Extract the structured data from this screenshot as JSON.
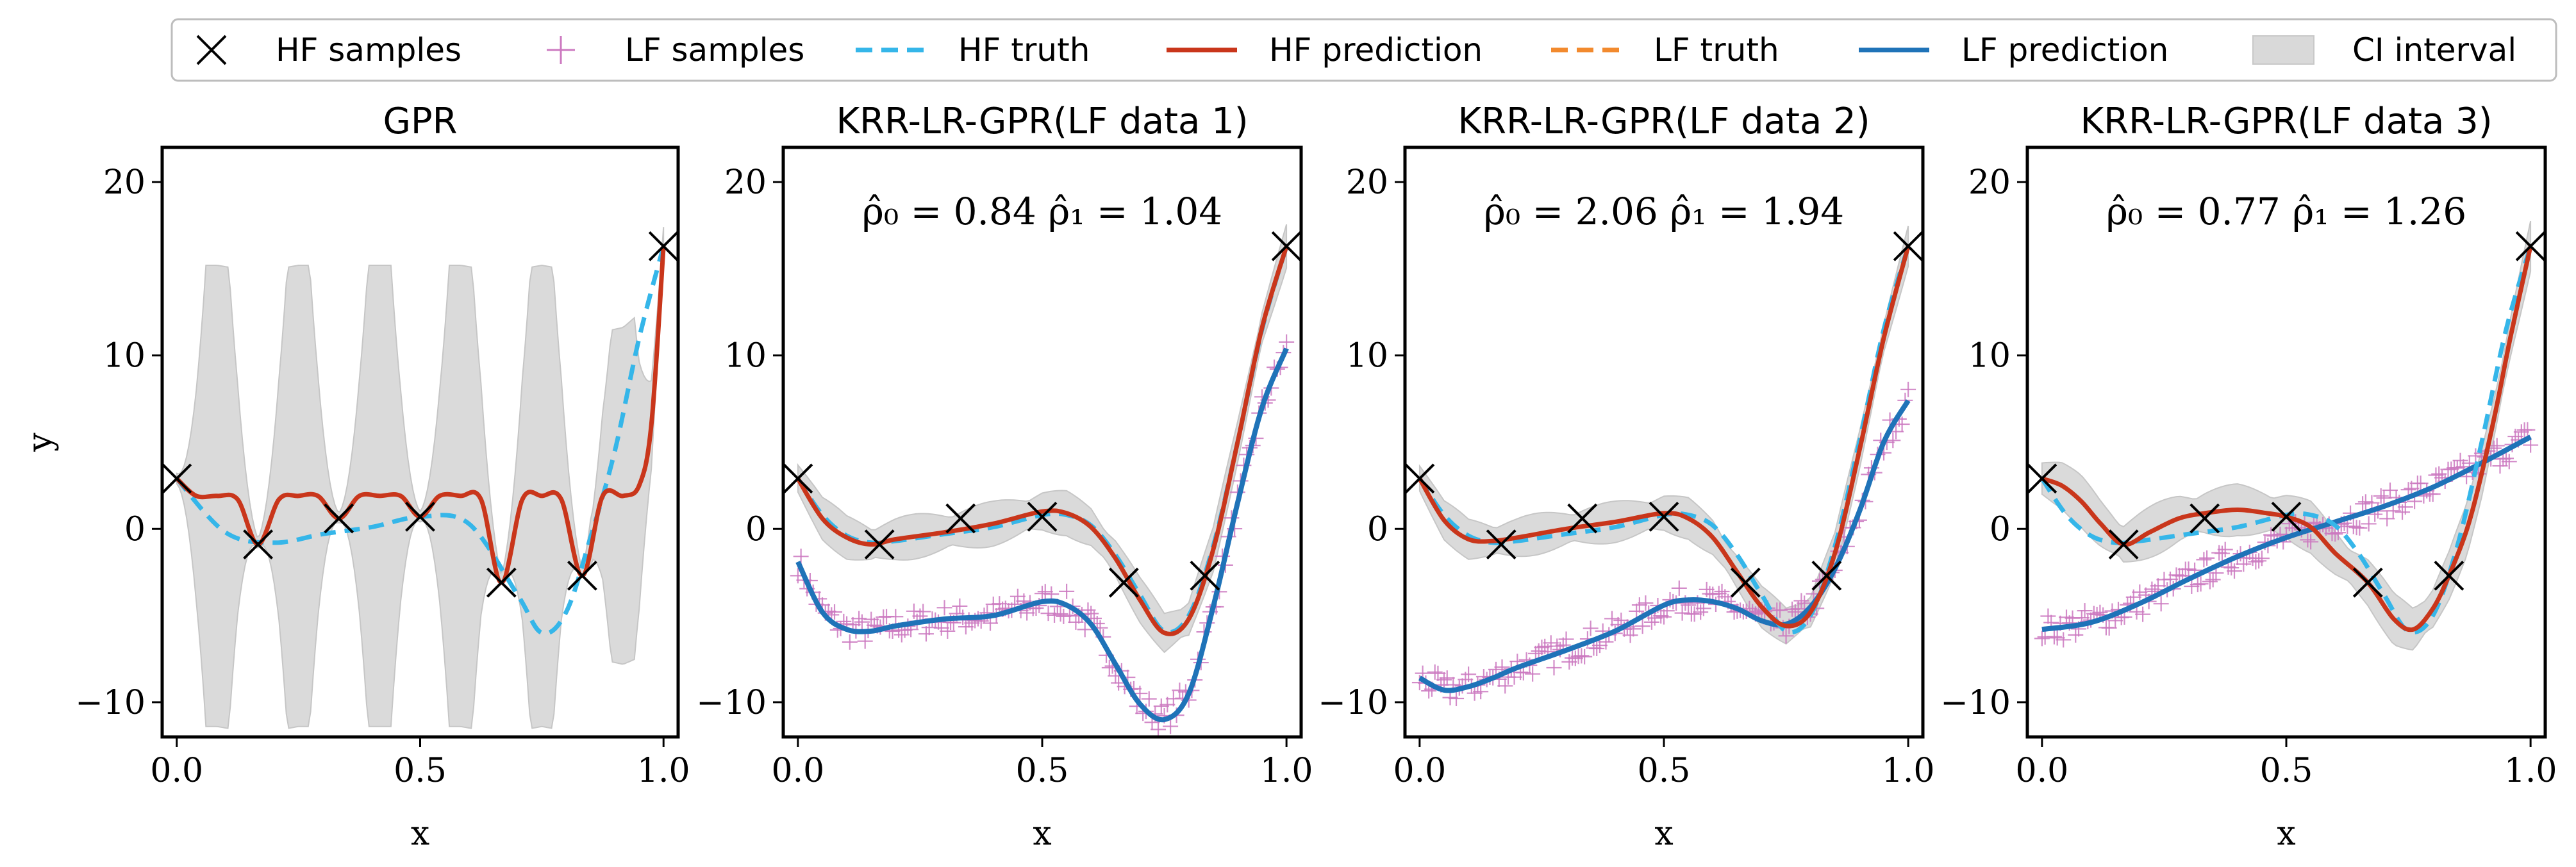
{
  "legend": {
    "items": [
      {
        "key": "hf_samples",
        "label": "HF samples",
        "marker": "x",
        "color": "#000000"
      },
      {
        "key": "lf_samples",
        "label": "LF samples",
        "marker": "+",
        "color": "#cc79c0"
      },
      {
        "key": "hf_truth",
        "label": "HF truth",
        "style": "dashed",
        "color": "#35b6e9"
      },
      {
        "key": "hf_pred",
        "label": "HF prediction",
        "style": "solid",
        "color": "#c9361b"
      },
      {
        "key": "lf_truth",
        "label": "LF truth",
        "style": "dashed",
        "color": "#f28a2e"
      },
      {
        "key": "lf_pred",
        "label": "LF prediction",
        "style": "solid",
        "color": "#1f73b8"
      },
      {
        "key": "ci",
        "label": "CI interval",
        "style": "fill",
        "color": "#d9d9d9"
      }
    ]
  },
  "chart_data": [
    {
      "type": "line",
      "title": "GPR",
      "xlabel": "x",
      "ylabel": "y",
      "xlim": [
        -0.03,
        1.03
      ],
      "ylim": [
        -12,
        22
      ],
      "xticks": [
        "0.0",
        "0.5",
        "1.0"
      ],
      "yticks": [
        "−10",
        "0",
        "10",
        "20"
      ],
      "annotation": "",
      "hf_samples": {
        "x": [
          0.0,
          0.167,
          0.333,
          0.5,
          0.667,
          0.833,
          1.0
        ],
        "y": [
          2.9,
          -0.9,
          0.6,
          0.7,
          -3.1,
          -2.7,
          16.3
        ]
      },
      "hf_truth": {
        "x": [
          0.0,
          0.1,
          0.2,
          0.3,
          0.4,
          0.5,
          0.6,
          0.7,
          0.75,
          0.8,
          0.85,
          0.9,
          0.95,
          1.0
        ],
        "y": [
          2.9,
          -0.2,
          -0.8,
          -0.3,
          0.1,
          0.7,
          0.3,
          -3.8,
          -6.0,
          -4.8,
          -0.5,
          4.5,
          11.0,
          16.3
        ]
      },
      "hf_prediction": {
        "x": [
          0.0,
          0.04,
          0.083,
          0.125,
          0.167,
          0.21,
          0.25,
          0.29,
          0.333,
          0.375,
          0.417,
          0.46,
          0.5,
          0.54,
          0.583,
          0.625,
          0.667,
          0.71,
          0.75,
          0.79,
          0.833,
          0.875,
          0.917,
          0.95,
          0.975,
          1.0
        ],
        "y": [
          2.9,
          1.9,
          1.9,
          1.7,
          -0.9,
          1.7,
          1.9,
          1.9,
          0.6,
          1.9,
          1.9,
          1.9,
          0.7,
          1.9,
          1.9,
          1.7,
          -3.1,
          1.7,
          1.9,
          1.7,
          -2.7,
          1.9,
          1.9,
          2.5,
          6.0,
          16.3
        ]
      },
      "ci_half_width": 13
    },
    {
      "type": "line",
      "title": "KRR-LR-GPR(LF data 1)",
      "xlabel": "x",
      "ylabel": "",
      "xlim": [
        -0.03,
        1.03
      ],
      "ylim": [
        -12,
        22
      ],
      "xticks": [
        "0.0",
        "0.5",
        "1.0"
      ],
      "yticks": [
        "−10",
        "0",
        "10",
        "20"
      ],
      "annotation": "ρ̂₀ = 0.84  ρ̂₁ = 1.04",
      "hf_samples": {
        "x": [
          0.0,
          0.167,
          0.333,
          0.5,
          0.667,
          0.833,
          1.0
        ],
        "y": [
          2.9,
          -0.9,
          0.6,
          0.7,
          -3.1,
          -2.7,
          16.3
        ]
      },
      "hf_truth": {
        "x": [
          0.0,
          0.05,
          0.1,
          0.15,
          0.2,
          0.3,
          0.4,
          0.5,
          0.55,
          0.6,
          0.65,
          0.7,
          0.75,
          0.8,
          0.85,
          0.9,
          0.95,
          1.0
        ],
        "y": [
          2.9,
          0.8,
          -0.4,
          -0.8,
          -0.7,
          -0.3,
          0.1,
          0.8,
          0.8,
          0.2,
          -1.5,
          -3.8,
          -5.9,
          -5.0,
          -1.0,
          5.0,
          11.5,
          16.3
        ]
      },
      "hf_prediction": {
        "x": [
          0.0,
          0.05,
          0.1,
          0.15,
          0.2,
          0.3,
          0.4,
          0.5,
          0.55,
          0.6,
          0.65,
          0.7,
          0.75,
          0.8,
          0.85,
          0.9,
          0.95,
          1.0
        ],
        "y": [
          2.9,
          0.6,
          -0.5,
          -0.9,
          -0.6,
          -0.2,
          0.3,
          1.0,
          0.9,
          0.1,
          -1.7,
          -4.1,
          -6.0,
          -5.2,
          -1.2,
          5.0,
          11.6,
          16.3
        ]
      },
      "lf_prediction": {
        "x": [
          0.0,
          0.05,
          0.1,
          0.15,
          0.2,
          0.3,
          0.4,
          0.5,
          0.55,
          0.6,
          0.65,
          0.7,
          0.75,
          0.8,
          0.85,
          0.9,
          0.95,
          1.0
        ],
        "y": [
          -1.9,
          -4.8,
          -5.8,
          -5.9,
          -5.6,
          -5.2,
          -5.0,
          -4.2,
          -4.4,
          -5.5,
          -7.8,
          -10.1,
          -11.0,
          -9.5,
          -4.5,
          1.5,
          7.0,
          10.4
        ]
      },
      "ci_half_width": 1.3
    },
    {
      "type": "line",
      "title": "KRR-LR-GPR(LF data 2)",
      "xlabel": "x",
      "ylabel": "",
      "xlim": [
        -0.03,
        1.03
      ],
      "ylim": [
        -12,
        22
      ],
      "xticks": [
        "0.0",
        "0.5",
        "1.0"
      ],
      "yticks": [
        "−10",
        "0",
        "10",
        "20"
      ],
      "annotation": "ρ̂₀ = 2.06  ρ̂₁ = 1.94",
      "hf_samples": {
        "x": [
          0.0,
          0.167,
          0.333,
          0.5,
          0.667,
          0.833,
          1.0
        ],
        "y": [
          2.9,
          -0.9,
          0.6,
          0.7,
          -3.1,
          -2.7,
          16.3
        ]
      },
      "hf_truth": {
        "x": [
          0.0,
          0.05,
          0.1,
          0.15,
          0.2,
          0.3,
          0.4,
          0.5,
          0.55,
          0.6,
          0.65,
          0.7,
          0.75,
          0.8,
          0.85,
          0.9,
          0.95,
          1.0
        ],
        "y": [
          2.9,
          0.8,
          -0.4,
          -0.8,
          -0.7,
          -0.3,
          0.1,
          0.8,
          0.8,
          0.2,
          -1.5,
          -3.8,
          -5.9,
          -5.0,
          -1.0,
          5.0,
          11.5,
          16.3
        ]
      },
      "hf_prediction": {
        "x": [
          0.0,
          0.05,
          0.1,
          0.15,
          0.2,
          0.3,
          0.4,
          0.5,
          0.55,
          0.6,
          0.65,
          0.7,
          0.75,
          0.8,
          0.85,
          0.9,
          0.95,
          1.0
        ],
        "y": [
          2.9,
          0.5,
          -0.6,
          -0.7,
          -0.5,
          0.0,
          0.4,
          0.9,
          0.6,
          -0.5,
          -2.5,
          -4.5,
          -5.6,
          -4.8,
          -1.4,
          4.5,
          11.0,
          16.3
        ]
      },
      "lf_prediction": {
        "x": [
          0.0,
          0.05,
          0.1,
          0.15,
          0.2,
          0.3,
          0.4,
          0.5,
          0.55,
          0.6,
          0.65,
          0.7,
          0.75,
          0.8,
          0.85,
          0.9,
          0.95,
          1.0
        ],
        "y": [
          -8.6,
          -9.3,
          -9.1,
          -8.6,
          -8.0,
          -7.0,
          -5.9,
          -4.4,
          -4.1,
          -4.2,
          -4.6,
          -5.3,
          -5.5,
          -4.5,
          -2.3,
          1.0,
          5.0,
          7.4
        ]
      },
      "ci_half_width": 1.2
    },
    {
      "type": "line",
      "title": "KRR-LR-GPR(LF data 3)",
      "xlabel": "x",
      "ylabel": "",
      "xlim": [
        -0.03,
        1.03
      ],
      "ylim": [
        -12,
        22
      ],
      "xticks": [
        "0.0",
        "0.5",
        "1.0"
      ],
      "yticks": [
        "−10",
        "0",
        "10",
        "20"
      ],
      "annotation": "ρ̂₀ = 0.77  ρ̂₁ = 1.26",
      "hf_samples": {
        "x": [
          0.0,
          0.167,
          0.333,
          0.5,
          0.667,
          0.833,
          1.0
        ],
        "y": [
          2.9,
          -0.9,
          0.6,
          0.7,
          -3.1,
          -2.7,
          16.3
        ]
      },
      "hf_truth": {
        "x": [
          0.0,
          0.05,
          0.1,
          0.15,
          0.2,
          0.3,
          0.4,
          0.5,
          0.55,
          0.6,
          0.65,
          0.7,
          0.75,
          0.8,
          0.85,
          0.9,
          0.95,
          1.0
        ],
        "y": [
          2.9,
          0.8,
          -0.4,
          -0.8,
          -0.7,
          -0.3,
          0.1,
          0.8,
          0.8,
          0.2,
          -1.5,
          -3.8,
          -5.9,
          -5.0,
          -1.0,
          5.0,
          11.5,
          16.3
        ]
      },
      "hf_prediction": {
        "x": [
          0.0,
          0.04,
          0.08,
          0.12,
          0.167,
          0.22,
          0.28,
          0.333,
          0.4,
          0.46,
          0.5,
          0.55,
          0.6,
          0.667,
          0.72,
          0.76,
          0.8,
          0.833,
          0.87,
          0.9,
          0.93,
          0.96,
          1.0
        ],
        "y": [
          2.9,
          2.5,
          1.6,
          0.3,
          -0.9,
          -0.2,
          0.6,
          0.9,
          1.1,
          0.9,
          0.7,
          0.1,
          -1.4,
          -3.1,
          -5.2,
          -5.8,
          -4.6,
          -2.7,
          0.0,
          3.2,
          7.0,
          11.2,
          16.3
        ]
      },
      "lf_prediction": {
        "x": [
          0.0,
          0.1,
          0.2,
          0.3,
          0.4,
          0.5,
          0.6,
          0.7,
          0.8,
          0.9,
          1.0
        ],
        "y": [
          -5.8,
          -5.4,
          -4.3,
          -2.9,
          -1.6,
          -0.5,
          0.4,
          1.3,
          2.4,
          3.8,
          5.3
        ]
      },
      "ci_half_width": 1.5
    }
  ]
}
